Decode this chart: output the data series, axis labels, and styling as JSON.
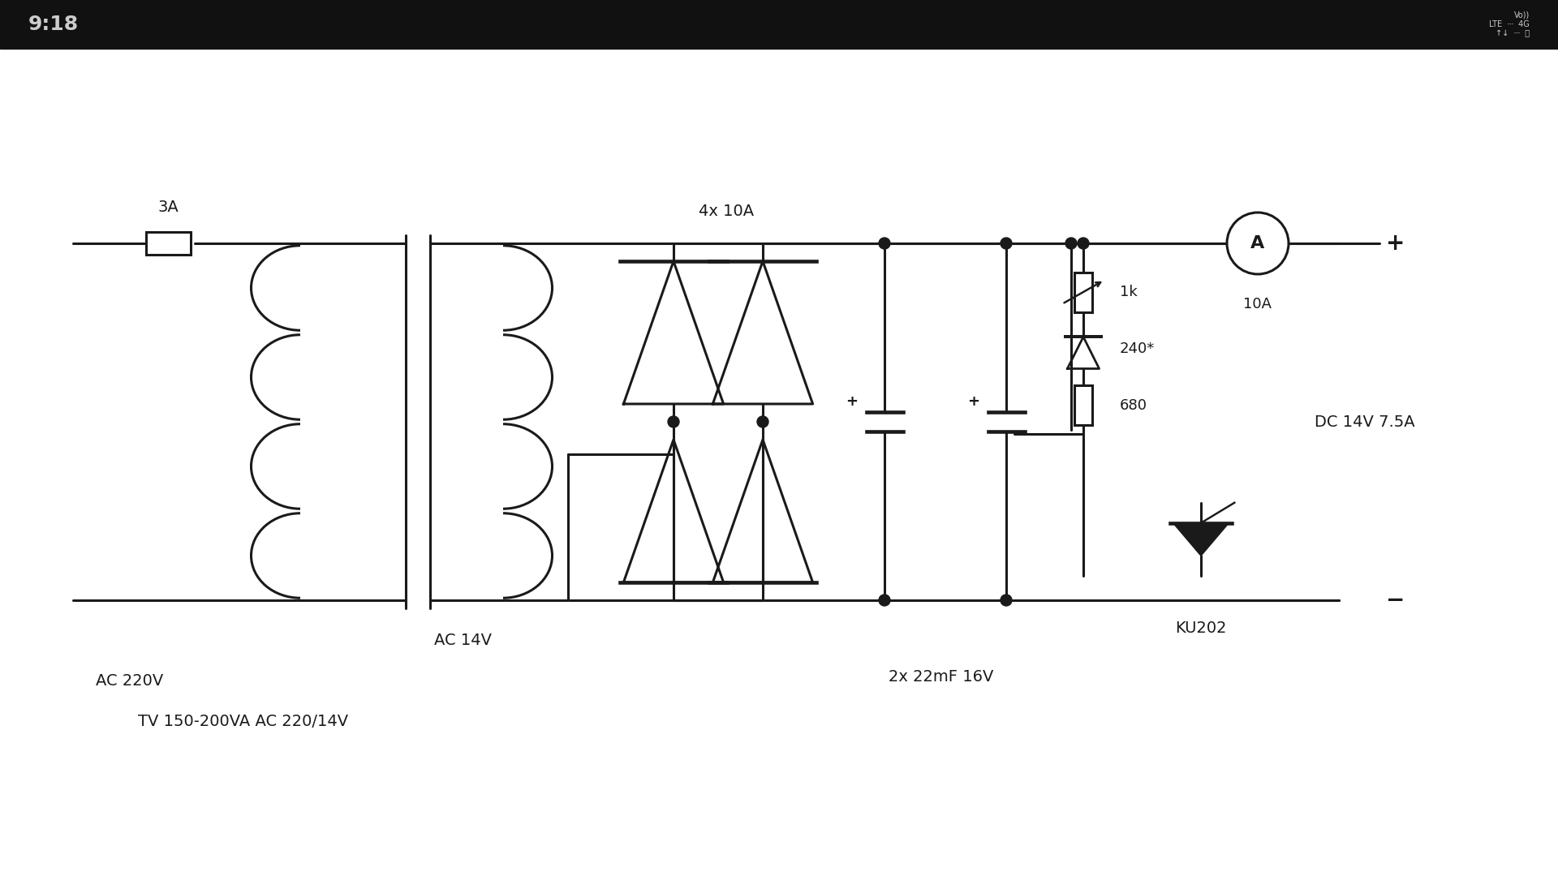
{
  "bg_color": "#ffffff",
  "line_color": "#1a1a1a",
  "lw": 2.2,
  "status_bar_color": "#111111",
  "status_bar_text_color": "#cccccc",
  "time_text": "9:18",
  "labels": {
    "fuse": "3A",
    "ac_input": "AC 220V",
    "transformer": "TV 150-200VA AC 220/14V",
    "ac_secondary": "AC 14V",
    "diodes": "4x 10A",
    "resistor": "1k",
    "vr_label": "240*",
    "r2_label": "680",
    "capacitor_label": "2x 22mF 16V",
    "ammeter_label": "10A",
    "dc_output": "DC 14V 7.5A",
    "thyristor": "KU202",
    "plus_terminal": "+",
    "minus_terminal": "−"
  }
}
